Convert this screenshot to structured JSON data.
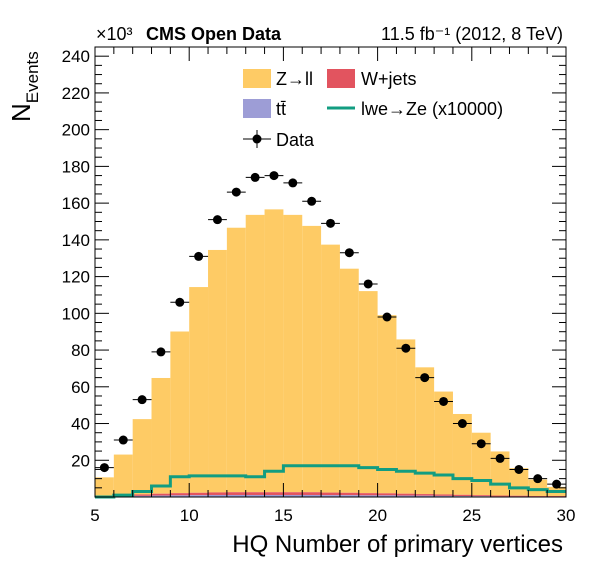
{
  "chart_data": {
    "type": "bar",
    "header_left": "CMS Open Data",
    "header_right": "11.5 fb⁻¹ (2012, 8 TeV)",
    "exponent_label": "×10³",
    "xlabel": "HQ Number of primary vertices",
    "ylabel": "N",
    "ylabel_sub": "Events",
    "xlim": [
      5,
      30
    ],
    "ylim": [
      0,
      245
    ],
    "x_ticks": [
      5,
      10,
      15,
      20,
      25,
      30
    ],
    "y_ticks": [
      20,
      40,
      60,
      80,
      100,
      120,
      140,
      160,
      180,
      200,
      220,
      240
    ],
    "bin_width": 1,
    "bin_centers": [
      5.5,
      6.5,
      7.5,
      8.5,
      9.5,
      10.5,
      11.5,
      12.5,
      13.5,
      14.5,
      15.5,
      16.5,
      17.5,
      18.5,
      19.5,
      20.5,
      21.5,
      22.5,
      23.5,
      24.5,
      25.5,
      26.5,
      27.5,
      28.5,
      29.5
    ],
    "legend": {
      "zll": "Z→ll",
      "wjets": "W+jets",
      "ttbar": "tt̄",
      "lwe": "lwe→Ze (x10000)",
      "data": "Data"
    },
    "colors": {
      "zll": "#fecb65",
      "wjets": "#e2545f",
      "ttbar": "#9d9dd6",
      "lwe": "#129d81",
      "data": "#000000"
    },
    "series": [
      {
        "name": "tt̄",
        "values": [
          0.3,
          0.5,
          0.6,
          0.8,
          0.9,
          1.0,
          1.1,
          1.1,
          1.1,
          1.1,
          1.1,
          1.1,
          1.0,
          1.0,
          0.9,
          0.9,
          0.8,
          0.7,
          0.6,
          0.5,
          0.4,
          0.3,
          0.3,
          0.2,
          0.2
        ]
      },
      {
        "name": "W+jets",
        "values": [
          0.4,
          0.6,
          0.8,
          1.0,
          1.2,
          1.3,
          1.4,
          1.5,
          1.5,
          1.5,
          1.5,
          1.5,
          1.4,
          1.3,
          1.2,
          1.1,
          1.0,
          0.9,
          0.8,
          0.7,
          0.6,
          0.5,
          0.4,
          0.3,
          0.3
        ]
      },
      {
        "name": "Z→ll",
        "values": [
          10,
          22,
          41,
          63,
          88,
          112,
          132,
          144,
          151,
          154,
          151,
          145,
          135,
          122,
          110,
          97,
          84,
          69,
          56,
          44,
          34,
          24,
          15,
          9,
          5
        ]
      },
      {
        "name": "lwe→Ze (x10000)",
        "values": [
          0,
          1,
          3,
          6,
          11,
          11.5,
          11.5,
          11.5,
          11,
          14,
          17,
          17,
          17,
          17,
          16,
          15,
          14,
          13,
          12,
          10,
          9,
          7,
          5,
          4,
          3
        ]
      },
      {
        "name": "Data",
        "values": [
          16,
          31,
          53,
          79,
          106,
          131,
          151,
          166,
          174,
          175,
          171,
          161,
          149,
          133,
          116,
          98,
          81,
          65,
          52,
          40,
          29,
          21,
          15,
          10,
          7
        ]
      }
    ]
  }
}
